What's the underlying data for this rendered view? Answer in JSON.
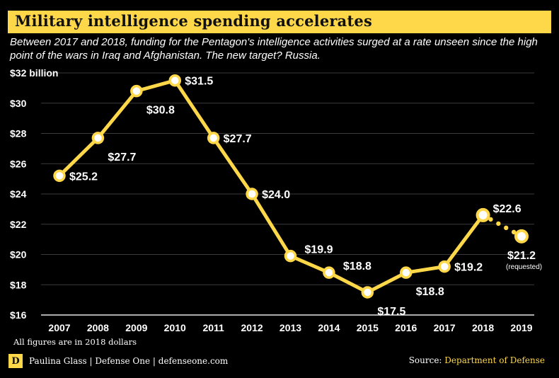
{
  "header": {
    "title": "Military intelligence spending accelerates",
    "subtitle": "Between 2017 and 2018, funding for the Pentagon's intelligence activities surged at a rate unseen since the high point of the wars in Iraq and Afghanistan. The new target? Russia."
  },
  "footer": {
    "note": "All figures are in 2018 dollars",
    "logo_letter": "D",
    "credit": "Paulina Glass | Defense One | defenseone.com",
    "source_prefix": "Source: ",
    "source_name": "Department of Defense"
  },
  "colors": {
    "accent": "#FFD84A",
    "background": "#000000",
    "gridline": "#3a3a3a",
    "baseline": "#e6e6e6",
    "marker_fill": "#ffffff"
  },
  "chart_data": {
    "type": "line",
    "title": "Military intelligence spending accelerates",
    "xlabel": "",
    "ylabel": "$ billion",
    "ylim": [
      16,
      32
    ],
    "grid": true,
    "y_ticks": [
      16,
      18,
      20,
      22,
      24,
      26,
      28,
      30,
      32
    ],
    "y_tick_labels": [
      "$16",
      "$18",
      "$20",
      "$22",
      "$24",
      "$26",
      "$28",
      "$30",
      "$32 billion"
    ],
    "x": [
      "2007",
      "2008",
      "2009",
      "2010",
      "2011",
      "2012",
      "2013",
      "2014",
      "2015",
      "2016",
      "2017",
      "2018",
      "2019"
    ],
    "series": [
      {
        "name": "Military intelligence spending",
        "values": [
          25.2,
          27.7,
          30.8,
          31.5,
          27.7,
          24.0,
          19.9,
          18.8,
          17.5,
          18.8,
          19.2,
          22.6,
          21.2
        ],
        "labels": [
          "$25.2",
          "$27.7",
          "$30.8",
          "$31.5",
          "$27.7",
          "$24.0",
          "$19.9",
          "$18.8",
          "$17.5",
          "$18.8",
          "$19.2",
          "$22.6",
          "$21.2"
        ],
        "projected_from_index": 11
      }
    ],
    "annotations": [
      {
        "x": "2019",
        "text": "(requested)"
      }
    ]
  }
}
